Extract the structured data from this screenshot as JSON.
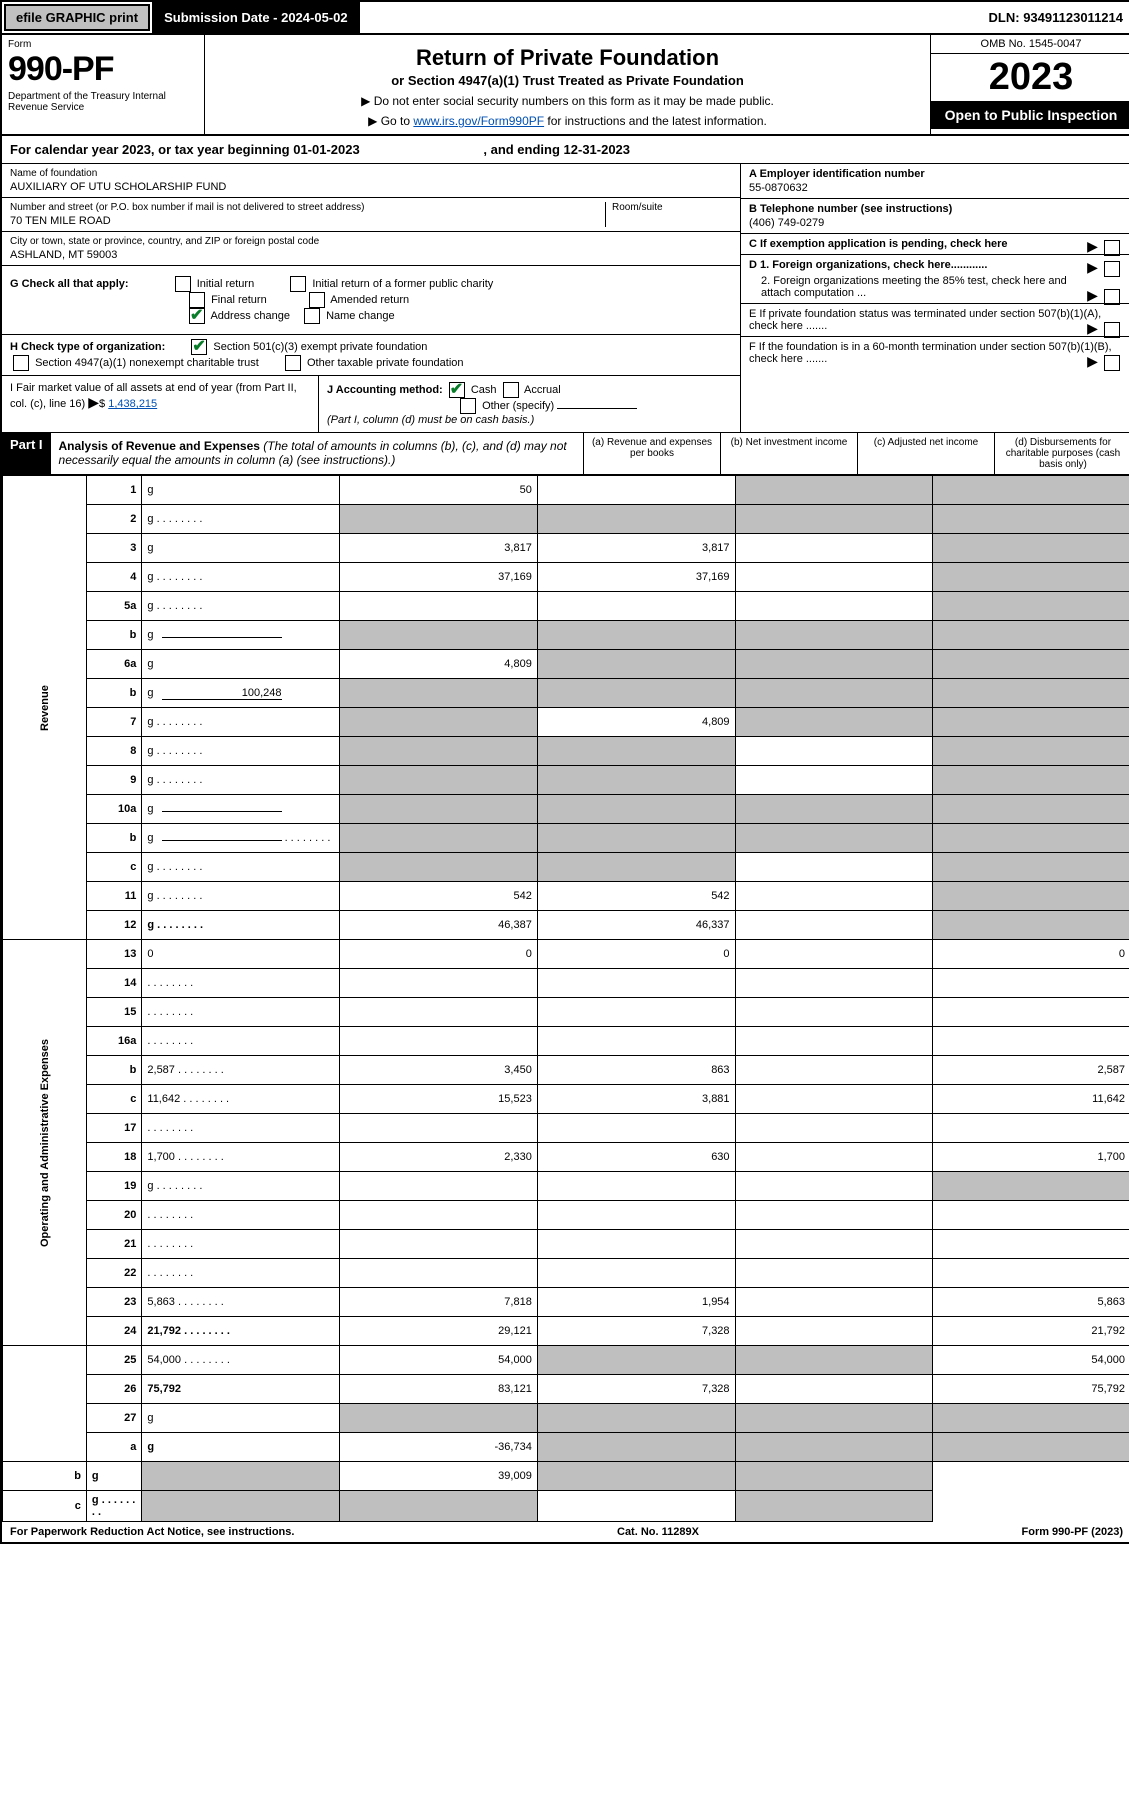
{
  "topbar": {
    "efile": "efile GRAPHIC print",
    "submission": "Submission Date - 2024-05-02",
    "dln": "DLN: 93491123011214"
  },
  "header": {
    "form": "Form",
    "form_no": "990-PF",
    "dept": "Department of the Treasury\nInternal Revenue Service",
    "title": "Return of Private Foundation",
    "subtitle": "or Section 4947(a)(1) Trust Treated as Private Foundation",
    "instr1": "▶ Do not enter social security numbers on this form as it may be made public.",
    "instr2_pre": "▶ Go to ",
    "instr2_link": "www.irs.gov/Form990PF",
    "instr2_post": " for instructions and the latest information.",
    "omb": "OMB No. 1545-0047",
    "year": "2023",
    "open": "Open to Public Inspection"
  },
  "cal_year": {
    "pre": "For calendar year 2023, or tax year beginning 01-01-2023",
    "end": ", and ending 12-31-2023"
  },
  "info": {
    "name_lbl": "Name of foundation",
    "name": "AUXILIARY OF UTU SCHOLARSHIP FUND",
    "addr_lbl": "Number and street (or P.O. box number if mail is not delivered to street address)",
    "addr": "70 TEN MILE ROAD",
    "room_lbl": "Room/suite",
    "city_lbl": "City or town, state or province, country, and ZIP or foreign postal code",
    "city": "ASHLAND, MT  59003",
    "a_lbl": "A Employer identification number",
    "a_val": "55-0870632",
    "b_lbl": "B Telephone number (see instructions)",
    "b_val": "(406) 749-0279",
    "c_lbl": "C If exemption application is pending, check here",
    "d1_lbl": "D 1. Foreign organizations, check here............",
    "d2_lbl": "2. Foreign organizations meeting the 85% test, check here and attach computation ...",
    "e_lbl": "E  If private foundation status was terminated under section 507(b)(1)(A), check here .......",
    "f_lbl": "F  If the foundation is in a 60-month termination under section 507(b)(1)(B), check here .......",
    "g_lbl": "G Check all that apply:",
    "g_opts": [
      "Initial return",
      "Final return",
      "Address change",
      "Initial return of a former public charity",
      "Amended return",
      "Name change"
    ],
    "h_lbl": "H Check type of organization:",
    "h_opts": [
      "Section 501(c)(3) exempt private foundation",
      "Section 4947(a)(1) nonexempt charitable trust",
      "Other taxable private foundation"
    ],
    "i_lbl": "I Fair market value of all assets at end of year (from Part II, col. (c), line 16)",
    "i_val": "1,438,215",
    "j_lbl": "J Accounting method:",
    "j_opts": [
      "Cash",
      "Accrual",
      "Other (specify)"
    ],
    "j_note": "(Part I, column (d) must be on cash basis.)"
  },
  "part1": {
    "label": "Part I",
    "title": "Analysis of Revenue and Expenses",
    "title_note": "(The total of amounts in columns (b), (c), and (d) may not necessarily equal the amounts in column (a) (see instructions).)",
    "col_a": "(a)   Revenue and expenses per books",
    "col_b": "(b)   Net investment income",
    "col_c": "(c)   Adjusted net income",
    "col_d": "(d)  Disbursements for charitable purposes (cash basis only)"
  },
  "side_labels": {
    "rev": "Revenue",
    "exp": "Operating and Administrative Expenses"
  },
  "rows": [
    {
      "n": "1",
      "d": "g",
      "a": "50",
      "b": "",
      "c": "g"
    },
    {
      "n": "2",
      "d": "g",
      "a": "g",
      "b": "g",
      "c": "g",
      "dots": true
    },
    {
      "n": "3",
      "d": "g",
      "a": "3,817",
      "b": "3,817",
      "c": ""
    },
    {
      "n": "4",
      "d": "g",
      "a": "37,169",
      "b": "37,169",
      "c": "",
      "dots": true
    },
    {
      "n": "5a",
      "d": "g",
      "a": "",
      "b": "",
      "c": "",
      "dots": true
    },
    {
      "n": "b",
      "d": "g",
      "a": "g",
      "b": "g",
      "c": "g",
      "inline": true
    },
    {
      "n": "6a",
      "d": "g",
      "a": "4,809",
      "b": "g",
      "c": "g"
    },
    {
      "n": "b",
      "d": "g",
      "a": "g",
      "b": "g",
      "c": "g",
      "inline": true,
      "inline_val": "100,248"
    },
    {
      "n": "7",
      "d": "g",
      "a": "g",
      "b": "4,809",
      "c": "g",
      "dots": true
    },
    {
      "n": "8",
      "d": "g",
      "a": "g",
      "b": "g",
      "c": "",
      "dots": true
    },
    {
      "n": "9",
      "d": "g",
      "a": "g",
      "b": "g",
      "c": "",
      "dots": true
    },
    {
      "n": "10a",
      "d": "g",
      "a": "g",
      "b": "g",
      "c": "g",
      "inline": true
    },
    {
      "n": "b",
      "d": "g",
      "a": "g",
      "b": "g",
      "c": "g",
      "inline": true,
      "dots": true
    },
    {
      "n": "c",
      "d": "g",
      "a": "g",
      "b": "g",
      "c": "",
      "dots": true
    },
    {
      "n": "11",
      "d": "g",
      "a": "542",
      "b": "542",
      "c": "",
      "dots": true
    },
    {
      "n": "12",
      "d": "g",
      "a": "46,387",
      "b": "46,337",
      "c": "",
      "bold": true,
      "dots": true
    },
    {
      "n": "13",
      "d": "0",
      "a": "0",
      "b": "0",
      "c": ""
    },
    {
      "n": "14",
      "d": "",
      "a": "",
      "b": "",
      "c": "",
      "dots": true
    },
    {
      "n": "15",
      "d": "",
      "a": "",
      "b": "",
      "c": "",
      "dots": true
    },
    {
      "n": "16a",
      "d": "",
      "a": "",
      "b": "",
      "c": "",
      "dots": true
    },
    {
      "n": "b",
      "d": "2,587",
      "a": "3,450",
      "b": "863",
      "c": "",
      "dots": true
    },
    {
      "n": "c",
      "d": "11,642",
      "a": "15,523",
      "b": "3,881",
      "c": "",
      "dots": true
    },
    {
      "n": "17",
      "d": "",
      "a": "",
      "b": "",
      "c": "",
      "dots": true
    },
    {
      "n": "18",
      "d": "1,700",
      "a": "2,330",
      "b": "630",
      "c": "",
      "dots": true
    },
    {
      "n": "19",
      "d": "g",
      "a": "",
      "b": "",
      "c": "",
      "dots": true
    },
    {
      "n": "20",
      "d": "",
      "a": "",
      "b": "",
      "c": "",
      "dots": true
    },
    {
      "n": "21",
      "d": "",
      "a": "",
      "b": "",
      "c": "",
      "dots": true
    },
    {
      "n": "22",
      "d": "",
      "a": "",
      "b": "",
      "c": "",
      "dots": true
    },
    {
      "n": "23",
      "d": "5,863",
      "a": "7,818",
      "b": "1,954",
      "c": "",
      "dots": true
    },
    {
      "n": "24",
      "d": "21,792",
      "a": "29,121",
      "b": "7,328",
      "c": "",
      "bold": true,
      "dots": true
    },
    {
      "n": "25",
      "d": "54,000",
      "a": "54,000",
      "b": "g",
      "c": "g",
      "dots": true
    },
    {
      "n": "26",
      "d": "75,792",
      "a": "83,121",
      "b": "7,328",
      "c": "",
      "bold": true
    },
    {
      "n": "27",
      "d": "g",
      "a": "g",
      "b": "g",
      "c": "g"
    },
    {
      "n": "a",
      "d": "g",
      "a": "-36,734",
      "b": "g",
      "c": "g",
      "bold": true
    },
    {
      "n": "b",
      "d": "g",
      "a": "g",
      "b": "39,009",
      "c": "g",
      "bold": true
    },
    {
      "n": "c",
      "d": "g",
      "a": "g",
      "b": "g",
      "c": "",
      "bold": true,
      "dots": true
    }
  ],
  "footer": {
    "left": "For Paperwork Reduction Act Notice, see instructions.",
    "center": "Cat. No. 11289X",
    "right": "Form 990-PF (2023)"
  }
}
